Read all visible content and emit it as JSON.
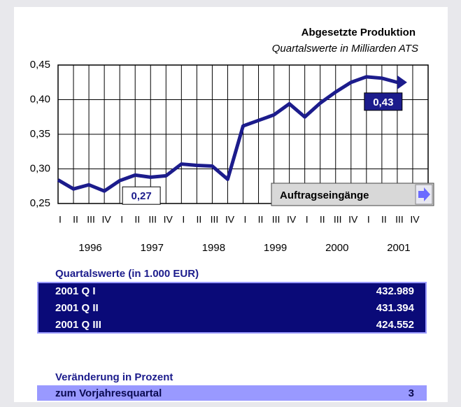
{
  "chart_data": {
    "type": "line",
    "title": "Abgesetzte Produktion",
    "subtitle": "Quartalswerte in Milliarden ATS",
    "categories": [
      "I",
      "II",
      "III",
      "IV",
      "I",
      "II",
      "III",
      "IV",
      "I",
      "II",
      "III",
      "IV",
      "I",
      "II",
      "III",
      "IV",
      "I",
      "II",
      "III",
      "IV",
      "I",
      "II",
      "III",
      "IV"
    ],
    "year_labels": [
      "1996",
      "1997",
      "1998",
      "1999",
      "2000",
      "2001"
    ],
    "values": [
      0.284,
      0.271,
      0.277,
      0.268,
      0.283,
      0.291,
      0.288,
      0.29,
      0.307,
      0.305,
      0.304,
      0.285,
      0.362,
      0.37,
      0.378,
      0.394,
      0.375,
      0.395,
      0.411,
      0.425,
      0.433,
      0.431,
      0.425,
      null
    ],
    "value_labels": [
      null,
      null,
      null,
      "0,27",
      null,
      null,
      null,
      null,
      null,
      null,
      null,
      null,
      null,
      null,
      null,
      null,
      null,
      null,
      null,
      null,
      "0,43",
      null,
      null,
      null
    ],
    "color": "#1c1c8c",
    "ylim": [
      0.25,
      0.45
    ],
    "yticks": [
      {
        "value": 0.25,
        "label": "0,25"
      },
      {
        "value": 0.3,
        "label": "0,30"
      },
      {
        "value": 0.35,
        "label": "0,35"
      },
      {
        "value": 0.4,
        "label": "0,40"
      },
      {
        "value": 0.45,
        "label": "0,45"
      }
    ],
    "grid": true
  },
  "button": {
    "label": "Auftragseingänge"
  },
  "quarterly": {
    "title": "Quartalswerte (in 1.000 EUR)",
    "rows": [
      [
        "2001 Q I",
        "432.989"
      ],
      [
        "2001 Q II",
        "431.394"
      ],
      [
        "2001 Q III",
        "424.552"
      ]
    ]
  },
  "change": {
    "title": "Veränderung in Prozent",
    "rows": [
      [
        "zum Vorjahresquartal",
        "3"
      ]
    ]
  }
}
